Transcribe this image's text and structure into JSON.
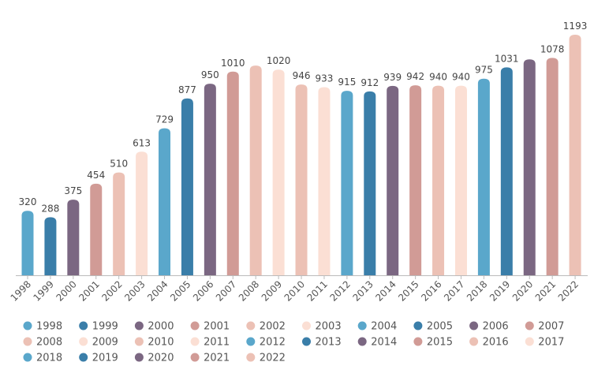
{
  "chart_data": {
    "type": "bar",
    "title": "",
    "xlabel": "",
    "ylabel": "",
    "ylim": [
      0,
      1193
    ],
    "grid": false,
    "legend_position": "bottom",
    "categories": [
      "1998",
      "1999",
      "2000",
      "2001",
      "2002",
      "2003",
      "2004",
      "2005",
      "2006",
      "2007",
      "2008",
      "2009",
      "2010",
      "2011",
      "2012",
      "2013",
      "2014",
      "2015",
      "2016",
      "2017",
      "2018",
      "2019",
      "2020",
      "2021",
      "2022"
    ],
    "values": [
      320,
      288,
      375,
      454,
      510,
      613,
      729,
      877,
      950,
      1010,
      1040,
      1020,
      946,
      933,
      915,
      912,
      939,
      942,
      940,
      940,
      975,
      1031,
      1071,
      1078,
      1193
    ],
    "data_labels": [
      "320",
      "288",
      "375",
      "454",
      "510",
      "613",
      "729",
      "877",
      "950",
      "1010",
      "",
      "1020",
      "946",
      "933",
      "915",
      "912",
      "939",
      "942",
      "940",
      "940",
      "975",
      "1031",
      "",
      "1078",
      "1193"
    ],
    "palette": [
      "#5aa7cb",
      "#3a7ea9",
      "#7b6782",
      "#d19b96",
      "#ecc1b5",
      "#fbdfd4"
    ],
    "color_index": [
      0,
      1,
      2,
      3,
      4,
      5,
      0,
      1,
      2,
      3,
      4,
      5,
      4,
      5,
      0,
      1,
      2,
      3,
      4,
      5,
      0,
      1,
      2,
      3,
      4
    ],
    "axis_color": "#bbbbbb",
    "text_color": "#555555"
  }
}
